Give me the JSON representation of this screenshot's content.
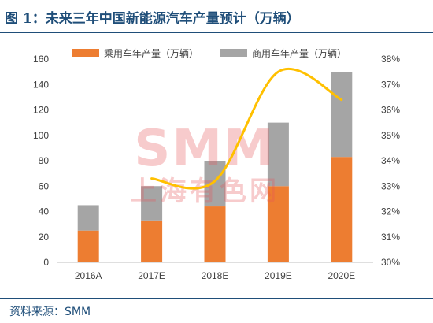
{
  "header": {
    "title": "图 1：未来三年中国新能源汽车产量预计（万辆）"
  },
  "footer": {
    "source": "资料来源：SMM"
  },
  "watermark": {
    "main": "SMM",
    "sub": "上海有色网"
  },
  "colors": {
    "passenger": "#ED7D31",
    "commercial": "#A5A5A5",
    "line": "#FFC000",
    "title": "#1F4E79"
  },
  "chart_data": {
    "type": "bar",
    "stacked": true,
    "categories": [
      "2016A",
      "2017E",
      "2018E",
      "2019E",
      "2020E"
    ],
    "series": [
      {
        "name": "乘用车年产量（万辆）",
        "values": [
          25,
          33,
          44,
          60,
          83
        ]
      },
      {
        "name": "商用车年产量（万辆）",
        "values": [
          20,
          27,
          36,
          50,
          67
        ]
      }
    ],
    "line_series": {
      "axis": "right",
      "x": [
        "2017E",
        "2018E",
        "2019E",
        "2020E"
      ],
      "values": [
        33.3,
        33.2,
        37.5,
        36.4
      ],
      "smooth": true
    },
    "y_left": {
      "min": 0,
      "max": 160,
      "step": 20,
      "ticks": [
        "0",
        "20",
        "40",
        "60",
        "80",
        "100",
        "120",
        "140",
        "160"
      ]
    },
    "y_right": {
      "min": 30,
      "max": 38,
      "step": 1,
      "ticks": [
        "30%",
        "31%",
        "32%",
        "33%",
        "34%",
        "35%",
        "36%",
        "37%",
        "38%"
      ]
    },
    "legend": "top",
    "grid": false
  }
}
